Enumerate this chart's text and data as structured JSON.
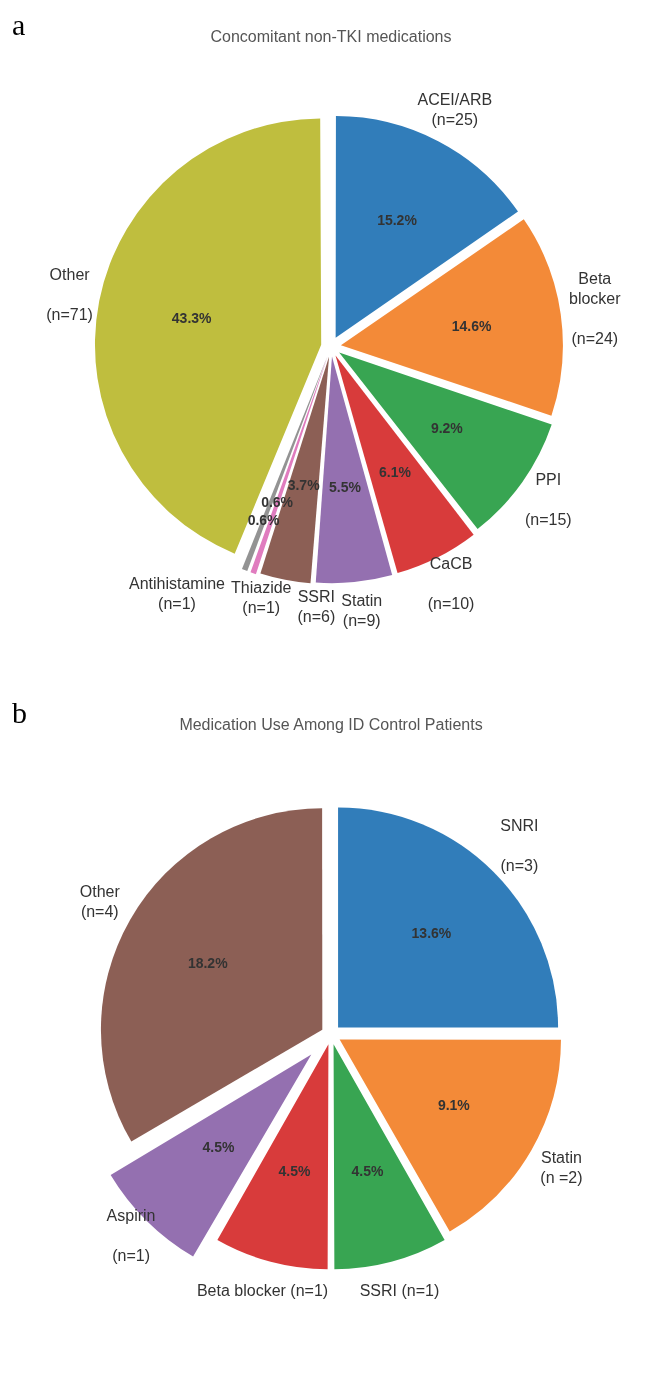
{
  "chart_data": [
    {
      "type": "pie",
      "title": "Concomitant non-TKI medications",
      "annotations": [
        "a"
      ],
      "categories": [
        "ACEI/ARB\n(n=25)",
        "Beta\nblocker\n\n(n=24)",
        "PPI\n\n(n=15)",
        "CaCB\n\n(n=10)",
        "Statin\n(n=9)",
        "SSRI\n(n=6)",
        "Thiazide\n(n=1)",
        "Antihistamine\n(n=1)",
        "Other\n\n(n=71)"
      ],
      "values": [
        15.2,
        14.6,
        9.2,
        6.1,
        5.5,
        3.7,
        0.6,
        0.6,
        43.3
      ],
      "value_labels": [
        "15.2%",
        "14.6%",
        "9.2%",
        "6.1%",
        "5.5%",
        "3.7%",
        "0.6%",
        "0.6%",
        "43.3%"
      ],
      "colors": [
        "#317dba",
        "#f38a38",
        "#38a552",
        "#d83b3b",
        "#9470b0",
        "#8c5f55",
        "#e07cbf",
        "#939393",
        "#bfbe3e"
      ]
    },
    {
      "type": "pie",
      "title": "Medication Use Among ID Control Patients",
      "annotations": [
        "b"
      ],
      "categories": [
        "SNRI\n\n(n=3)",
        "Statin\n(n =2)",
        "SSRI (n=1)",
        "Beta blocker (n=1)",
        "Aspirin\n\n(n=1)",
        "Other\n(n=4)"
      ],
      "values": [
        13.6,
        9.1,
        4.5,
        4.5,
        4.5,
        18.2
      ],
      "value_labels": [
        "13.6%",
        "9.1%",
        "4.5%",
        "4.5%",
        "4.5%",
        "18.2%"
      ],
      "colors": [
        "#317dba",
        "#f38a38",
        "#38a552",
        "#d83b3b",
        "#9470b0",
        "#8c5f55"
      ]
    }
  ]
}
